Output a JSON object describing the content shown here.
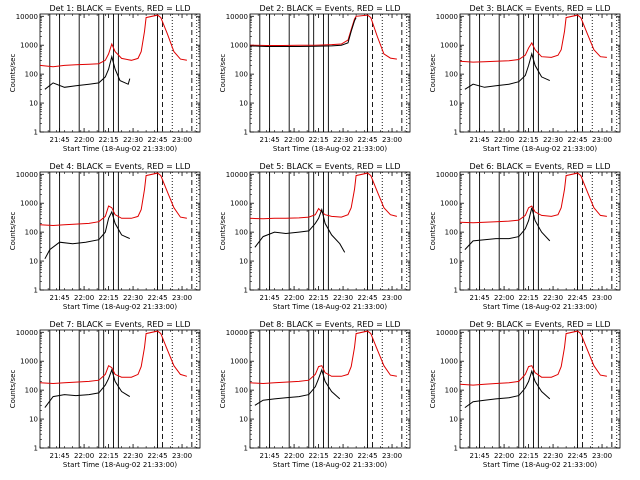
{
  "chart_data": {
    "type": "line",
    "panel_titles": [
      "Det 1: BLACK = Events, RED = LLD",
      "Det 2: BLACK = Events, RED = LLD",
      "Det 3: BLACK = Events, RED = LLD",
      "Det 4: BLACK = Events, RED = LLD",
      "Det 5: BLACK = Events, RED = LLD",
      "Det 6: BLACK = Events, RED = LLD",
      "Det 7: BLACK = Events, RED = LLD",
      "Det 8: BLACK = Events, RED = LLD",
      "Det 9: BLACK = Events, RED = LLD"
    ],
    "xlabel": "Start Time (18-Aug-02 21:33:00)",
    "ylabel": "Counts/sec",
    "x_tick_labels": [
      "21:45",
      "22:00",
      "22:15",
      "22:30",
      "22:45",
      "23:00"
    ],
    "x_ticks_min": [
      12,
      27,
      42,
      57,
      72,
      87
    ],
    "xlim_min": [
      0,
      98
    ],
    "y_tick_labels": [
      "1",
      "10",
      "100",
      "1000",
      "10000"
    ],
    "y_ticks": [
      1,
      10,
      100,
      1000,
      10000
    ],
    "ylim": [
      1,
      12000
    ],
    "y_scale": "log",
    "solid_vlines_min": [
      6,
      12,
      24,
      36,
      39,
      45,
      48,
      72
    ],
    "dashed_vlines_min": [
      75,
      93
    ],
    "dotted_vlines_min": [
      81,
      96
    ],
    "series_colors": {
      "events": "#000000",
      "lld": "#e00000"
    },
    "panels": [
      {
        "events": [
          [
            3,
            30
          ],
          [
            8,
            50
          ],
          [
            15,
            35
          ],
          [
            22,
            40
          ],
          [
            30,
            45
          ],
          [
            36,
            50
          ],
          [
            40,
            80
          ],
          [
            42,
            150
          ],
          [
            44,
            400
          ],
          [
            46,
            150
          ],
          [
            49,
            60
          ],
          [
            54,
            45
          ],
          [
            55,
            70
          ]
        ],
        "lld": [
          [
            0,
            200
          ],
          [
            8,
            180
          ],
          [
            15,
            200
          ],
          [
            22,
            210
          ],
          [
            30,
            220
          ],
          [
            36,
            230
          ],
          [
            40,
            300
          ],
          [
            42,
            500
          ],
          [
            44,
            1100
          ],
          [
            46,
            600
          ],
          [
            50,
            350
          ],
          [
            56,
            300
          ],
          [
            60,
            350
          ],
          [
            62,
            600
          ],
          [
            64,
            3000
          ],
          [
            65,
            9000
          ],
          [
            72,
            11000
          ],
          [
            74,
            9000
          ],
          [
            78,
            2500
          ],
          [
            82,
            600
          ],
          [
            86,
            330
          ],
          [
            90,
            300
          ]
        ]
      },
      {
        "events": [
          [
            0,
            950
          ],
          [
            10,
            900
          ],
          [
            20,
            900
          ],
          [
            30,
            900
          ],
          [
            40,
            920
          ],
          [
            50,
            950
          ],
          [
            56,
            1000
          ],
          [
            60,
            1200
          ],
          [
            62,
            3000
          ],
          [
            64,
            7000
          ],
          [
            65,
            9000
          ]
        ],
        "lld": [
          [
            0,
            1000
          ],
          [
            10,
            980
          ],
          [
            20,
            980
          ],
          [
            30,
            990
          ],
          [
            40,
            1000
          ],
          [
            50,
            1050
          ],
          [
            56,
            1100
          ],
          [
            60,
            1500
          ],
          [
            62,
            3500
          ],
          [
            64,
            8000
          ],
          [
            65,
            10000
          ],
          [
            72,
            11000
          ],
          [
            74,
            9000
          ],
          [
            78,
            2000
          ],
          [
            82,
            500
          ],
          [
            86,
            360
          ],
          [
            90,
            330
          ]
        ]
      },
      {
        "events": [
          [
            3,
            30
          ],
          [
            8,
            45
          ],
          [
            15,
            35
          ],
          [
            22,
            40
          ],
          [
            30,
            45
          ],
          [
            36,
            55
          ],
          [
            40,
            90
          ],
          [
            42,
            200
          ],
          [
            44,
            500
          ],
          [
            46,
            200
          ],
          [
            50,
            80
          ],
          [
            55,
            60
          ]
        ],
        "lld": [
          [
            0,
            280
          ],
          [
            8,
            260
          ],
          [
            15,
            270
          ],
          [
            22,
            280
          ],
          [
            30,
            290
          ],
          [
            36,
            320
          ],
          [
            40,
            450
          ],
          [
            42,
            800
          ],
          [
            44,
            1200
          ],
          [
            46,
            700
          ],
          [
            50,
            400
          ],
          [
            56,
            380
          ],
          [
            60,
            450
          ],
          [
            62,
            700
          ],
          [
            64,
            3000
          ],
          [
            65,
            9000
          ],
          [
            72,
            11000
          ],
          [
            74,
            9000
          ],
          [
            78,
            2500
          ],
          [
            82,
            700
          ],
          [
            86,
            400
          ],
          [
            90,
            380
          ]
        ]
      },
      {
        "events": [
          [
            3,
            12
          ],
          [
            6,
            25
          ],
          [
            12,
            45
          ],
          [
            20,
            40
          ],
          [
            28,
            45
          ],
          [
            36,
            55
          ],
          [
            40,
            100
          ],
          [
            42,
            300
          ],
          [
            44,
            500
          ],
          [
            46,
            200
          ],
          [
            50,
            80
          ],
          [
            55,
            60
          ]
        ],
        "lld": [
          [
            0,
            180
          ],
          [
            8,
            170
          ],
          [
            15,
            180
          ],
          [
            22,
            190
          ],
          [
            30,
            200
          ],
          [
            36,
            230
          ],
          [
            40,
            350
          ],
          [
            42,
            800
          ],
          [
            44,
            700
          ],
          [
            46,
            400
          ],
          [
            50,
            300
          ],
          [
            56,
            300
          ],
          [
            60,
            350
          ],
          [
            62,
            600
          ],
          [
            64,
            3000
          ],
          [
            65,
            9000
          ],
          [
            72,
            11000
          ],
          [
            74,
            9000
          ],
          [
            78,
            2500
          ],
          [
            82,
            700
          ],
          [
            86,
            330
          ],
          [
            90,
            300
          ]
        ]
      },
      {
        "events": [
          [
            3,
            30
          ],
          [
            8,
            70
          ],
          [
            15,
            100
          ],
          [
            22,
            90
          ],
          [
            30,
            100
          ],
          [
            36,
            110
          ],
          [
            40,
            200
          ],
          [
            42,
            300
          ],
          [
            44,
            600
          ],
          [
            46,
            200
          ],
          [
            50,
            80
          ],
          [
            55,
            40
          ],
          [
            58,
            20
          ]
        ],
        "lld": [
          [
            0,
            300
          ],
          [
            8,
            290
          ],
          [
            15,
            300
          ],
          [
            22,
            300
          ],
          [
            30,
            310
          ],
          [
            36,
            330
          ],
          [
            40,
            400
          ],
          [
            42,
            650
          ],
          [
            44,
            500
          ],
          [
            46,
            400
          ],
          [
            50,
            350
          ],
          [
            56,
            330
          ],
          [
            60,
            400
          ],
          [
            62,
            700
          ],
          [
            64,
            3000
          ],
          [
            65,
            9000
          ],
          [
            72,
            11000
          ],
          [
            74,
            9000
          ],
          [
            78,
            2500
          ],
          [
            82,
            700
          ],
          [
            86,
            400
          ],
          [
            90,
            350
          ]
        ]
      },
      {
        "events": [
          [
            3,
            25
          ],
          [
            8,
            50
          ],
          [
            15,
            55
          ],
          [
            22,
            60
          ],
          [
            30,
            60
          ],
          [
            36,
            70
          ],
          [
            40,
            130
          ],
          [
            42,
            250
          ],
          [
            44,
            700
          ],
          [
            46,
            250
          ],
          [
            50,
            100
          ],
          [
            55,
            50
          ]
        ],
        "lld": [
          [
            0,
            220
          ],
          [
            8,
            210
          ],
          [
            15,
            220
          ],
          [
            22,
            230
          ],
          [
            30,
            240
          ],
          [
            36,
            260
          ],
          [
            40,
            380
          ],
          [
            42,
            700
          ],
          [
            44,
            800
          ],
          [
            46,
            500
          ],
          [
            50,
            380
          ],
          [
            56,
            350
          ],
          [
            60,
            400
          ],
          [
            62,
            700
          ],
          [
            64,
            3000
          ],
          [
            65,
            9000
          ],
          [
            72,
            11000
          ],
          [
            74,
            9000
          ],
          [
            78,
            2500
          ],
          [
            82,
            700
          ],
          [
            86,
            380
          ],
          [
            90,
            350
          ]
        ]
      },
      {
        "events": [
          [
            3,
            25
          ],
          [
            8,
            60
          ],
          [
            15,
            70
          ],
          [
            22,
            65
          ],
          [
            30,
            70
          ],
          [
            36,
            80
          ],
          [
            40,
            150
          ],
          [
            42,
            250
          ],
          [
            44,
            500
          ],
          [
            46,
            200
          ],
          [
            50,
            90
          ],
          [
            55,
            60
          ]
        ],
        "lld": [
          [
            0,
            180
          ],
          [
            8,
            170
          ],
          [
            15,
            180
          ],
          [
            22,
            190
          ],
          [
            30,
            200
          ],
          [
            36,
            220
          ],
          [
            40,
            350
          ],
          [
            42,
            700
          ],
          [
            44,
            600
          ],
          [
            46,
            350
          ],
          [
            50,
            280
          ],
          [
            56,
            280
          ],
          [
            60,
            350
          ],
          [
            62,
            650
          ],
          [
            64,
            3000
          ],
          [
            65,
            9000
          ],
          [
            72,
            11000
          ],
          [
            74,
            9000
          ],
          [
            78,
            2500
          ],
          [
            82,
            700
          ],
          [
            86,
            350
          ],
          [
            90,
            300
          ]
        ]
      },
      {
        "events": [
          [
            3,
            30
          ],
          [
            8,
            45
          ],
          [
            15,
            50
          ],
          [
            22,
            55
          ],
          [
            30,
            60
          ],
          [
            36,
            70
          ],
          [
            40,
            130
          ],
          [
            42,
            250
          ],
          [
            44,
            500
          ],
          [
            46,
            200
          ],
          [
            50,
            90
          ],
          [
            55,
            50
          ]
        ],
        "lld": [
          [
            0,
            180
          ],
          [
            8,
            170
          ],
          [
            15,
            180
          ],
          [
            22,
            190
          ],
          [
            30,
            200
          ],
          [
            36,
            220
          ],
          [
            40,
            350
          ],
          [
            42,
            650
          ],
          [
            44,
            700
          ],
          [
            46,
            400
          ],
          [
            50,
            300
          ],
          [
            56,
            300
          ],
          [
            60,
            350
          ],
          [
            62,
            650
          ],
          [
            64,
            3000
          ],
          [
            65,
            9000
          ],
          [
            72,
            11000
          ],
          [
            74,
            9000
          ],
          [
            78,
            2500
          ],
          [
            82,
            700
          ],
          [
            86,
            330
          ],
          [
            90,
            300
          ]
        ]
      },
      {
        "events": [
          [
            3,
            25
          ],
          [
            8,
            40
          ],
          [
            15,
            45
          ],
          [
            22,
            50
          ],
          [
            30,
            55
          ],
          [
            36,
            65
          ],
          [
            40,
            120
          ],
          [
            42,
            200
          ],
          [
            44,
            450
          ],
          [
            46,
            200
          ],
          [
            50,
            90
          ],
          [
            55,
            50
          ]
        ],
        "lld": [
          [
            0,
            160
          ],
          [
            8,
            150
          ],
          [
            15,
            160
          ],
          [
            22,
            170
          ],
          [
            30,
            180
          ],
          [
            36,
            200
          ],
          [
            40,
            350
          ],
          [
            42,
            650
          ],
          [
            44,
            700
          ],
          [
            46,
            400
          ],
          [
            50,
            280
          ],
          [
            56,
            280
          ],
          [
            60,
            350
          ],
          [
            62,
            650
          ],
          [
            64,
            3000
          ],
          [
            65,
            9000
          ],
          [
            72,
            11000
          ],
          [
            74,
            9000
          ],
          [
            78,
            2500
          ],
          [
            82,
            700
          ],
          [
            86,
            330
          ],
          [
            90,
            300
          ]
        ]
      }
    ]
  }
}
